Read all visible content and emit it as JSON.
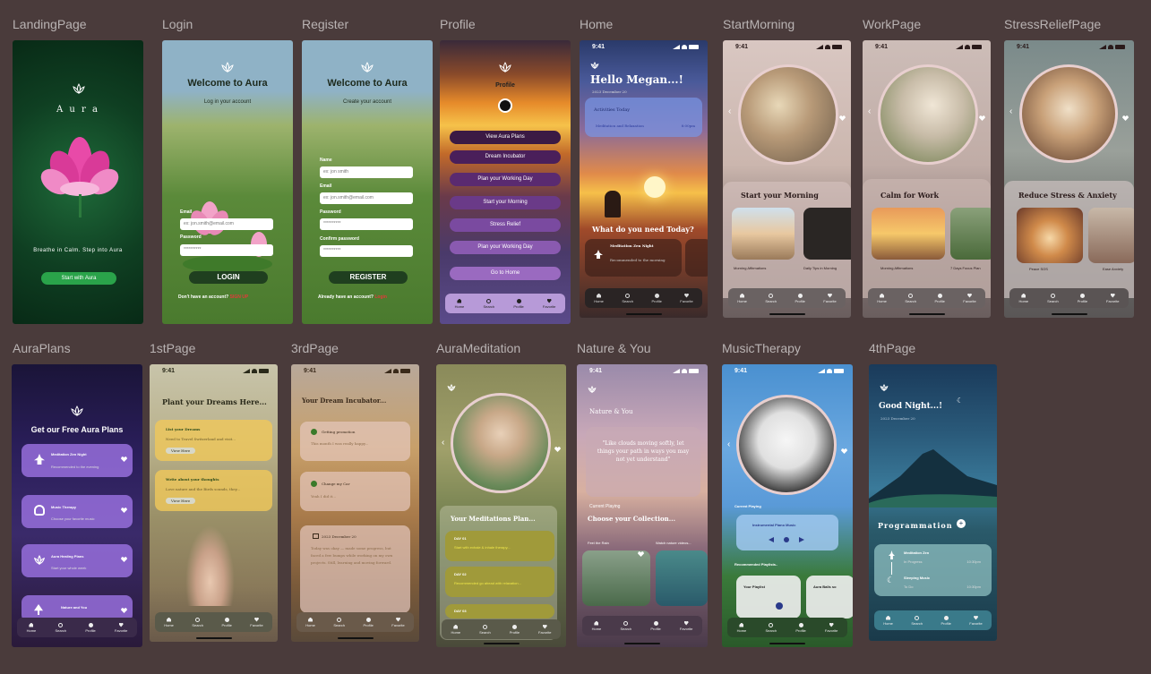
{
  "frames": {
    "landing": {
      "label": "LandingPage",
      "brand": "A u r a",
      "tagline": "Breathe in Calm. Step into Aura",
      "cta": "Start with Aura"
    },
    "login": {
      "label": "Login",
      "title": "Welcome to Aura",
      "subtitle": "Log in your account",
      "email_label": "Email",
      "email_placeholder": "ex: jon.smith@email.com",
      "password_label": "Password",
      "password_value": "**********",
      "button": "LOGIN",
      "footer_text": "Don't have an account?",
      "footer_link": "SIGN UP"
    },
    "register": {
      "label": "Register",
      "title": "Welcome to Aura",
      "subtitle": "Create your account",
      "name_label": "Name",
      "name_placeholder": "ex: jon smith",
      "email_label": "Email",
      "email_placeholder": "ex: jon.smith@email.com",
      "password_label": "Password",
      "password_value": "**********",
      "confirm_label": "Confirm password",
      "confirm_value": "**********",
      "button": "REGISTER",
      "footer_text": "Already have an account?",
      "footer_link": "Login"
    },
    "profile": {
      "label": "Profile",
      "title": "Profile",
      "buttons": [
        "View Aura Plans",
        "Dream Incubator",
        "Plan your Working Day",
        "Start your Morning",
        "Stress Relief",
        "Plan your Working Day",
        "Go to Home"
      ]
    },
    "home": {
      "label": "Home",
      "time": "9:41",
      "greeting": "Hello Megan...!",
      "date": "2023 December 20",
      "activities_title": "Activities Today",
      "activity_name": "Meditation and Relaxation",
      "activity_time": "8:00pm",
      "question": "What do you need Today?",
      "card_title": "Meditation Zen Night",
      "card_desc": "Recommended to the morning"
    },
    "startmorning": {
      "label": "StartMorning",
      "time": "9:41",
      "title": "Start your Morning",
      "card1": "Morning Affirmations",
      "card2": "Daily Tips in Morning"
    },
    "work": {
      "label": "WorkPage",
      "time": "9:41",
      "title": "Calm for Work",
      "card1": "Morning Affirmations",
      "card2": "7 Days Focus Plan"
    },
    "stress": {
      "label": "StressReliefPage",
      "time": "9:41",
      "title": "Reduce Stress & Anxiety",
      "card1": "Peace SOS",
      "card2": "Ease Anxiety"
    },
    "auraplans": {
      "label": "AuraPlans",
      "title": "Get our Free Aura Plans",
      "plans": [
        {
          "name": "Meditation Zen Night",
          "desc": "Recommended to the evening"
        },
        {
          "name": "Music Therapy",
          "desc": "Choose your favorite music"
        },
        {
          "name": "Aura Healing Plans",
          "desc": "Start your whole week"
        },
        {
          "name": "Nature and You",
          "desc": ""
        }
      ]
    },
    "page1": {
      "label": "1stPage",
      "time": "9:41",
      "title": "Plant your Dreams Here...",
      "card1_title": "List your Dreams",
      "card1_desc": "Need to Travel Switzerland and visit...",
      "card1_button": "View Here",
      "card2_title": "Write about your thoughts",
      "card2_desc": "Love nature and the Birds sounds, they...",
      "card2_button": "View Here"
    },
    "page3": {
      "label": "3rdPage",
      "time": "9:41",
      "title": "Your Dream Incubator...",
      "item1_title": "Getting promotion",
      "item1_desc": "This month I was really happy...",
      "item2_title": "Change my Car",
      "item2_desc": "Yeah I did it...",
      "journal_date": "2023 December 20",
      "journal_text": "Today was okay — made some progress, but faced a few bumps while working on my own projects. Still, learning and moving forward."
    },
    "meditation": {
      "label": "AuraMeditation",
      "title": "Your Meditations Plan...",
      "days": [
        {
          "day": "DAY 01",
          "text": "Start with exhale & inhale therapy..."
        },
        {
          "day": "DAY 02",
          "text": "Recommended go ahead with relaxation..."
        },
        {
          "day": "DAY 03",
          "text": ""
        }
      ]
    },
    "nature": {
      "label": "Nature & You",
      "time": "9:41",
      "title": "Nature & You",
      "quote": "\"Like clouds moving softly, let things your path in ways you may not yet understand\"",
      "current": "Current Playing",
      "collection": "Choose  your Collection...",
      "item1": "Feel the Rain",
      "item2": "Watch nature videos..."
    },
    "music": {
      "label": "MusicTherapy",
      "time": "9:41",
      "current": "Current Playing",
      "track": "Instrumental Piano Music",
      "recommended": "Recommended Playlists..",
      "playlist1": "Your Playlist",
      "playlist2": "Aura Balls so"
    },
    "page4": {
      "label": "4thPage",
      "greeting": "Good Night...!",
      "date": "2023 December 20",
      "section": "Programmation",
      "items": [
        {
          "name": "Meditation Zen",
          "status": "In Progress",
          "time": "10:30pm"
        },
        {
          "name": "Sleeping Music",
          "status": "To Do",
          "time": "10:30pm"
        }
      ]
    }
  },
  "nav": {
    "home": "Home",
    "search": "Search",
    "profile": "Profile",
    "favorite": "Favorite"
  }
}
